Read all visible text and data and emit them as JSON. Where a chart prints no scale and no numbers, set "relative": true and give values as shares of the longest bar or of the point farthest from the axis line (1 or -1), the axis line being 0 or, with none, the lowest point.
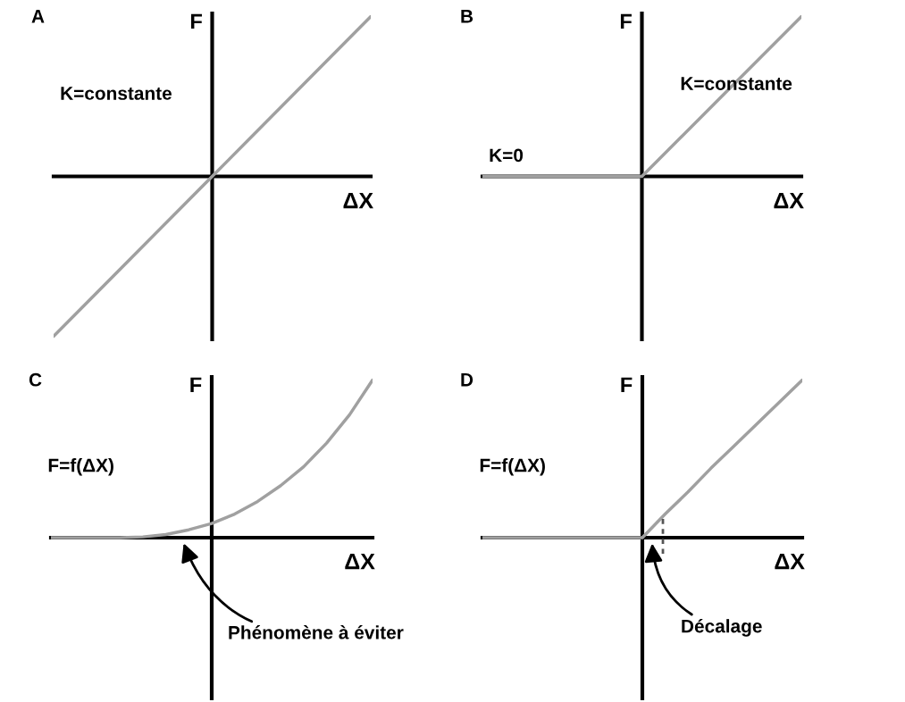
{
  "chart_data": [
    {
      "type": "line",
      "title": "A",
      "xlabel": "ΔX",
      "ylabel": "F",
      "relative": true,
      "categories": [
        null,
        null,
        null,
        null,
        null,
        null,
        null,
        null,
        null
      ],
      "series": [
        {
          "color": "#a0a0a0",
          "values": [
            -1,
            -0.75,
            -0.5,
            -0.25,
            0,
            0.25,
            0.5,
            0.75,
            1
          ]
        }
      ],
      "annotations": [
        "K=constante"
      ]
    },
    {
      "type": "line",
      "title": "B",
      "xlabel": "ΔX",
      "ylabel": "F",
      "relative": true,
      "categories": [
        null,
        null,
        null,
        null,
        null,
        null,
        null,
        null,
        null
      ],
      "series": [
        {
          "color": "#a0a0a0",
          "values": [
            0,
            0,
            0,
            0,
            0,
            0.25,
            0.5,
            0.75,
            1
          ]
        }
      ],
      "annotations": [
        "K=0",
        "K=constante"
      ]
    },
    {
      "type": "line",
      "title": "C",
      "xlabel": "ΔX",
      "ylabel": "F",
      "relative": true,
      "categories": [
        null,
        null,
        null,
        null,
        null,
        null,
        null,
        null,
        null,
        null,
        null,
        null,
        null,
        null,
        null
      ],
      "series": [
        {
          "color": "#a0a0a0",
          "values": [
            0,
            0,
            0,
            0,
            0.005,
            0.02,
            0.05,
            0.09,
            0.15,
            0.23,
            0.33,
            0.45,
            0.6,
            0.78,
            1
          ]
        }
      ],
      "annotations": [
        "F=f(ΔX)",
        "Phénomène à éviter"
      ]
    },
    {
      "type": "line",
      "title": "D",
      "xlabel": "ΔX",
      "ylabel": "F",
      "relative": true,
      "categories": [
        null,
        null,
        null,
        null,
        null,
        null,
        null,
        null,
        null,
        null,
        null,
        null,
        null,
        null,
        null
      ],
      "series": [
        {
          "color": "#a0a0a0",
          "values": [
            0,
            0,
            0,
            0,
            0,
            0,
            0,
            0,
            0.15,
            0.29,
            0.44,
            0.58,
            0.72,
            0.86,
            1
          ]
        }
      ],
      "annotations": [
        "F=f(ΔX)",
        "Décalage"
      ]
    }
  ]
}
